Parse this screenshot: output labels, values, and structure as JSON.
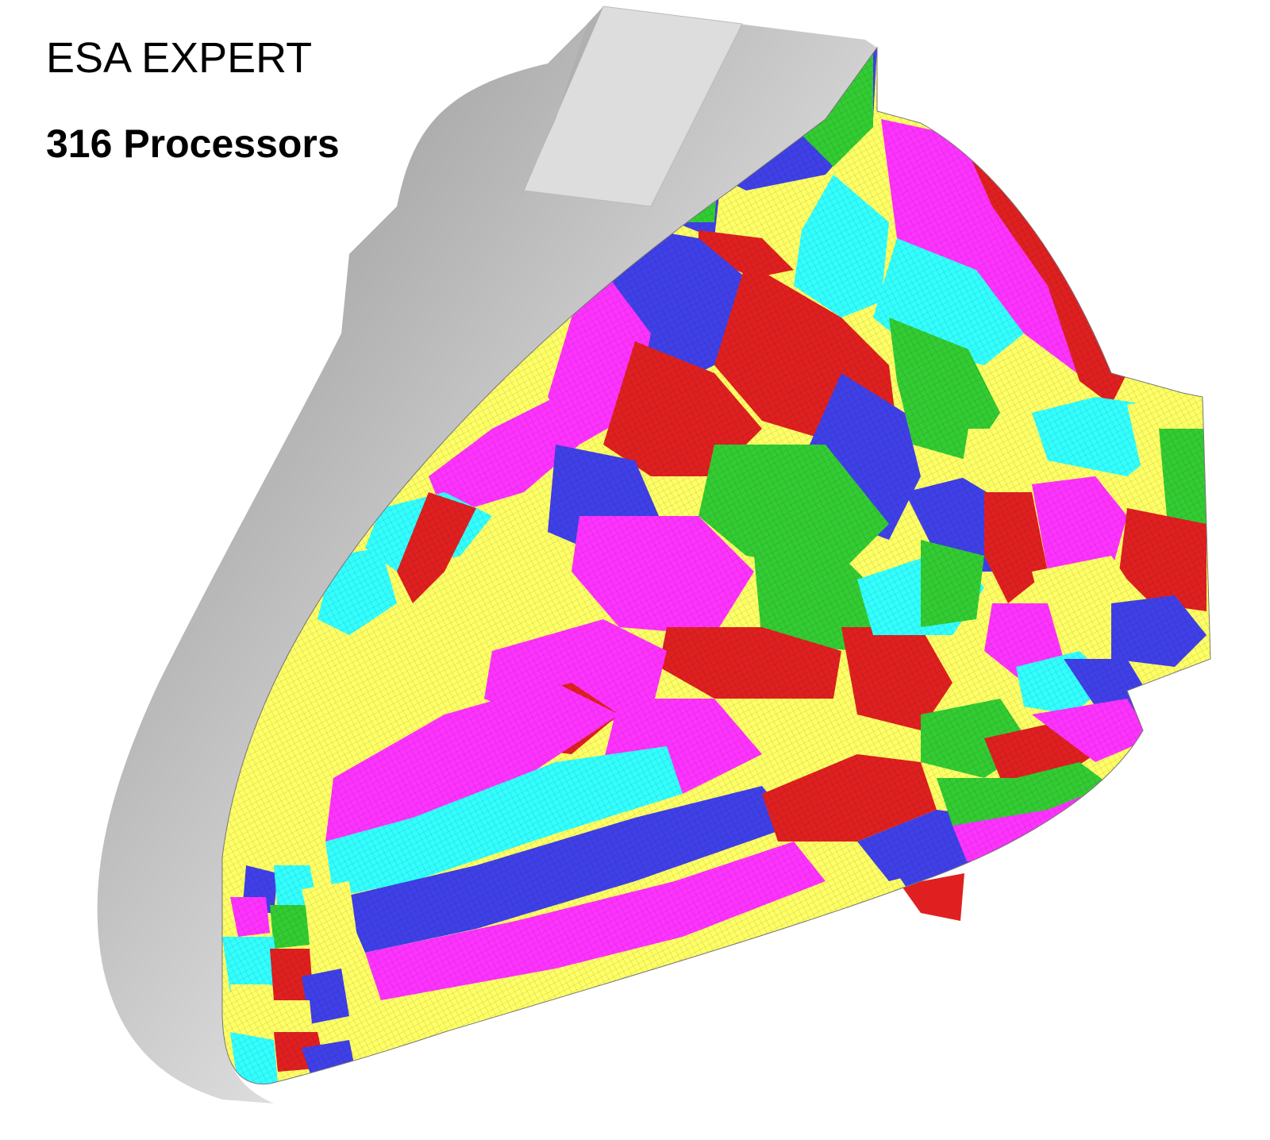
{
  "title": "ESA EXPERT",
  "subtitle": "316  Processors",
  "partition_colors": {
    "red": "#e02020",
    "green": "#33cc33",
    "blue": "#4040e8",
    "magenta": "#ff33ff",
    "yellow": "#ffff66",
    "cyan": "#33ffff",
    "body_gray": "#c8c8c8"
  }
}
